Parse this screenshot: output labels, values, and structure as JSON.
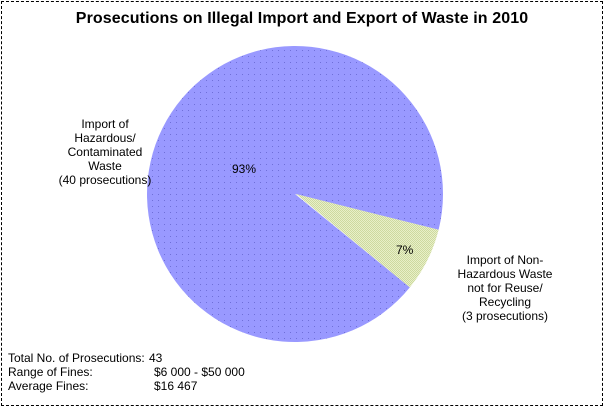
{
  "chart_data": {
    "type": "pie",
    "title": "Prosecutions on Illegal Import and Export of Waste in 2010",
    "slices": [
      {
        "label": "Import of Hazardous/ Contaminated Waste (40 prosecutions)",
        "label_lines": [
          "Import of",
          "Hazardous/",
          "Contaminated",
          "Waste",
          "(40 prosecutions)"
        ],
        "value": 40,
        "percent": 93,
        "percent_label": "93%",
        "color": "#9999ff"
      },
      {
        "label": "Import of Non-Hazardous Waste not for Reuse/ Recycling (3 prosecutions)",
        "label_lines": [
          "Import of Non-",
          "Hazardous Waste",
          "not for Reuse/",
          "Recycling",
          "(3 prosecutions)"
        ],
        "value": 3,
        "percent": 7,
        "percent_label": "7%",
        "color": "#e3ecbf"
      }
    ],
    "legend": "none (data labels beside slices)",
    "annotations": [
      {
        "key": "Total No. of Prosecutions:",
        "value": "43"
      },
      {
        "key": "Range of Fines:",
        "value": "$6 000 - $50 000"
      },
      {
        "key": "Average Fines:",
        "value": "$16 467"
      }
    ]
  },
  "title": "Prosecutions on Illegal Import and Export of Waste in 2010",
  "labels": {
    "hazardous": [
      "Import of",
      "Hazardous/",
      "Contaminated",
      "Waste",
      "(40 prosecutions)"
    ],
    "non_hazardous": [
      "Import of Non-",
      "Hazardous Waste",
      "not for Reuse/",
      "Recycling",
      "(3 prosecutions)"
    ],
    "pct_hazardous": "93%",
    "pct_non_hazardous": "7%"
  },
  "stats": [
    {
      "key": "Total No. of Prosecutions:",
      "value": "43"
    },
    {
      "key": "Range of Fines:",
      "value": "$6 000 - $50 000"
    },
    {
      "key": "Average Fines:",
      "value": "$16 467"
    }
  ],
  "colors": {
    "hazardous": "#9999ff",
    "hazardous_dot": "#6f6fd8",
    "non_hazardous": "#e3ecbf",
    "non_hazardous_alt": "#c9d79a"
  }
}
